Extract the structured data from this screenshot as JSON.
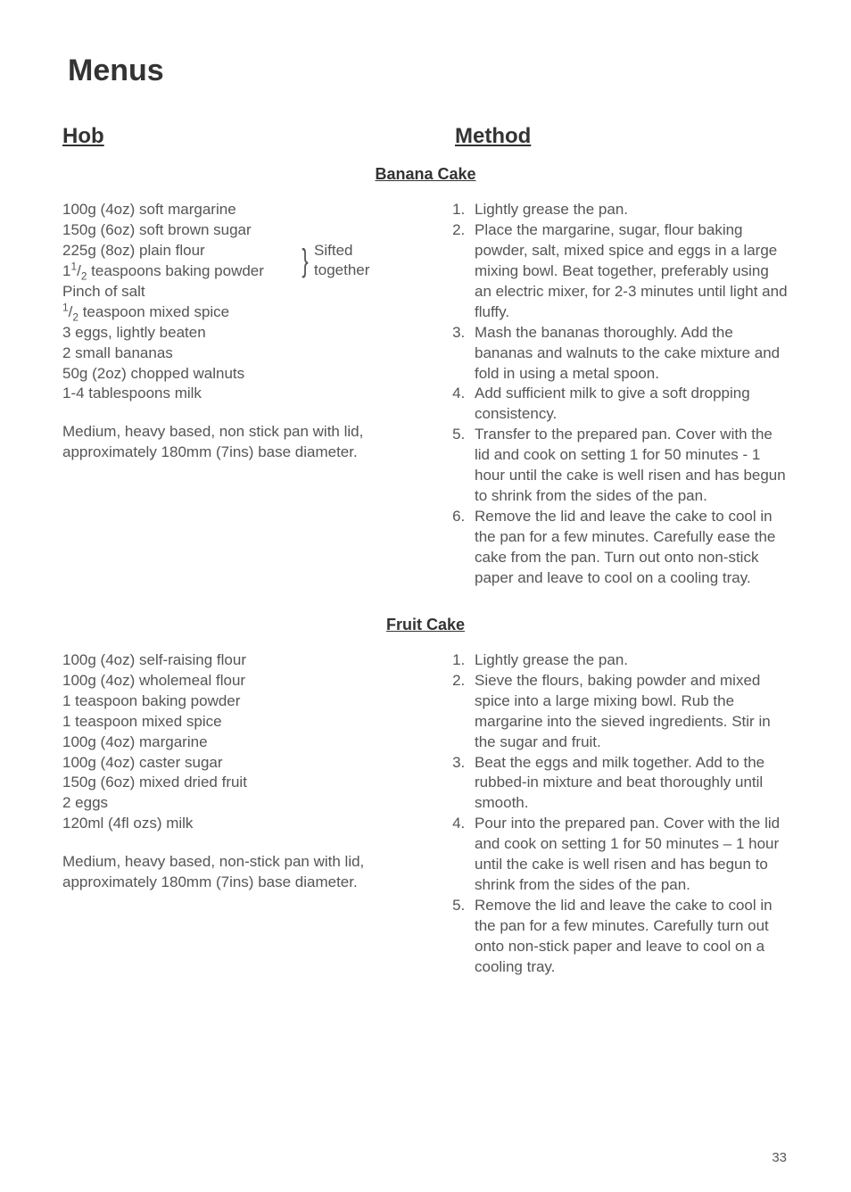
{
  "page_title": "Menus",
  "left_heading": "Hob",
  "right_heading": "Method",
  "page_number": "33",
  "recipes": [
    {
      "title": "Banana Cake",
      "ingredients_plain_pre": [
        "100g (4oz) soft margarine",
        "150g (6oz) soft brown sugar"
      ],
      "sift_group": {
        "lines": [
          "225g (8oz) plain flour",
          "1¹/₂ teaspoons baking powder"
        ],
        "note_line1": "Sifted",
        "note_line2": "together"
      },
      "ingredients_plain_post": [
        "Pinch of salt",
        "¹/₂ teaspoon mixed spice",
        "3 eggs, lightly beaten",
        "2 small bananas",
        "50g (2oz) chopped walnuts",
        "1-4 tablespoons milk"
      ],
      "equipment": "Medium, heavy based, non stick pan with lid, approximately 180mm (7ins) base diameter.",
      "method": [
        "Lightly grease the pan.",
        "Place the margarine, sugar, flour baking powder, salt, mixed spice and eggs in a large mixing bowl. Beat together, preferably using an electric mixer, for 2-3 minutes until light and fluffy.",
        "Mash the bananas thoroughly. Add the bananas and walnuts to the cake mixture and fold in using a metal spoon.",
        "Add sufficient milk to give a soft dropping consistency.",
        "Transfer to the prepared pan. Cover with the lid and cook on setting 1 for 50 minutes - 1 hour until the cake is well risen and has begun to shrink from the sides of the pan.",
        "Remove the lid and leave the cake to cool in the pan for a few minutes. Carefully ease the cake from the pan. Turn out onto non-stick paper and leave to cool on a cooling tray."
      ]
    },
    {
      "title": "Fruit Cake",
      "ingredients_plain_pre": [
        "100g (4oz) self-raising flour",
        "100g (4oz) wholemeal flour",
        "1 teaspoon baking powder",
        "1 teaspoon mixed spice",
        "100g (4oz) margarine",
        "100g (4oz) caster sugar",
        "150g (6oz) mixed dried fruit",
        "2 eggs",
        "120ml (4fl ozs) milk"
      ],
      "sift_group": null,
      "ingredients_plain_post": [],
      "equipment": "Medium, heavy based, non-stick pan with lid, approximately 180mm (7ins) base diameter.",
      "method": [
        "Lightly grease the pan.",
        "Sieve the flours, baking powder and mixed spice into a large mixing bowl. Rub the margarine into the sieved ingredients. Stir in the sugar and fruit.",
        "Beat the eggs and milk together. Add to the rubbed-in mixture and beat thoroughly until smooth.",
        "Pour into the prepared pan. Cover with the lid and cook on setting 1 for 50 minutes – 1 hour until the cake is well risen and has begun to shrink from the sides of the pan.",
        "Remove the lid and leave the cake to cool in the pan for a few minutes. Carefully turn out onto non-stick paper and leave to cool on a cooling tray."
      ]
    }
  ]
}
